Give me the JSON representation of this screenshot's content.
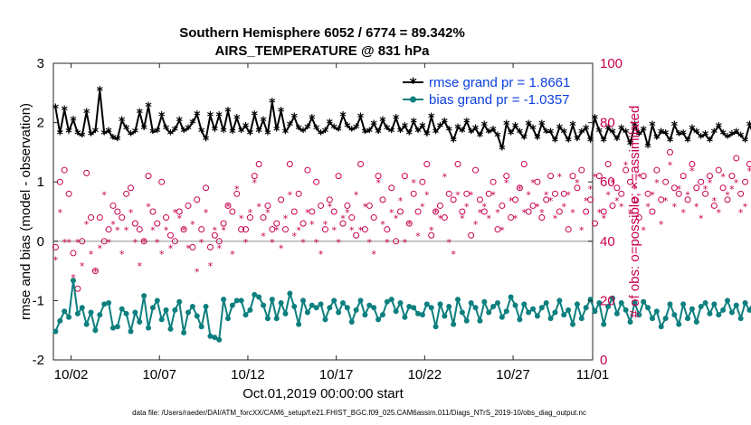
{
  "chart_data": {
    "type": "line",
    "title": "Southern Hemisphere 6052 / 6774 = 89.342%",
    "subtitle": "AIRS_TEMPERATURE @ 831 hPa",
    "xlabel": "Oct.01,2019 00:00:00 start",
    "ylabel": "rmse and bias (model - observation)",
    "ylabel_right": "# of obs: o=possible; ×=assimilated",
    "footnote": "data file: /Users/raeder/DAI/ATM_forcXX/CAM6_setup/f.e21.FHIST_BGC.f09_025.CAM6assim.011/Diags_NTrS_2019-10/obs_diag_output.nc",
    "xlim": [
      0.5,
      31.0
    ],
    "ylim": [
      -2,
      3
    ],
    "ylim_right": [
      0,
      100
    ],
    "x_ticks": [
      1.5,
      6.5,
      11.5,
      16.5,
      21.5,
      26.5,
      31.0
    ],
    "x_tick_labels": [
      "10/02",
      "10/07",
      "10/12",
      "10/17",
      "10/22",
      "10/27",
      "11/01"
    ],
    "y_ticks": [
      -2,
      -1,
      0,
      1,
      2,
      3
    ],
    "y_ticks_right": [
      0,
      20,
      40,
      60,
      80,
      100
    ],
    "grid": false,
    "legend_position": "top-right",
    "colors": {
      "rmse": "#000000",
      "bias": "#0e7f7f",
      "obs": "#c8004f",
      "zero_line": "#b3b3b3",
      "legend_text": "#0b3fe0"
    },
    "series": [
      {
        "name": "rmse grand pr = 1.8661",
        "axis": "left",
        "style": "line-asterisk",
        "values": [
          2.25,
          1.82,
          2.22,
          1.85,
          2.05,
          1.82,
          1.78,
          2.18,
          1.8,
          1.86,
          2.55,
          1.82,
          1.86,
          1.74,
          1.72,
          2.04,
          1.9,
          1.8,
          1.85,
          2.18,
          1.9,
          2.28,
          1.84,
          1.86,
          2.12,
          1.9,
          1.82,
          1.88,
          2.04,
          1.86,
          1.9,
          2.0,
          2.14,
          1.86,
          1.72,
          2.12,
          1.88,
          2.12,
          1.86,
          2.2,
          1.84,
          2.08,
          1.86,
          1.94,
          1.82,
          2.14,
          1.86,
          2.04,
          1.82,
          2.35,
          1.88,
          2.2,
          1.84,
          1.96,
          2.1,
          1.9,
          1.86,
          1.92,
          2.08,
          1.9,
          1.82,
          1.86,
          2.0,
          1.92,
          1.88,
          2.12,
          1.94,
          1.88,
          1.92,
          2.1,
          1.84,
          1.86,
          1.98,
          1.84,
          2.04,
          1.9,
          1.86,
          2.08,
          1.86,
          1.94,
          1.82,
          2.02,
          1.86,
          1.94,
          1.8,
          2.1,
          1.84,
          1.94,
          2.02,
          1.88,
          1.7,
          1.92,
          1.86,
          2.02,
          1.84,
          1.9,
          1.78,
          1.96,
          1.84,
          1.88,
          1.78,
          1.56,
          1.98,
          1.82,
          1.94,
          1.84,
          1.74,
          1.98,
          1.9,
          1.74,
          1.98,
          1.84,
          1.84,
          1.7,
          1.92,
          1.84,
          1.7,
          1.96,
          1.72,
          1.84,
          1.9,
          1.7,
          2.08,
          1.86,
          1.7,
          1.9,
          1.84,
          1.72,
          1.9,
          1.84,
          1.64,
          1.96,
          1.8,
          1.88,
          1.6,
          1.96,
          1.74,
          1.84,
          1.82,
          1.7,
          1.96,
          1.8,
          1.82,
          1.7,
          1.9,
          1.84,
          1.76,
          1.8,
          1.7,
          1.84,
          1.94,
          1.82,
          1.76,
          1.8,
          1.84,
          1.78,
          1.7,
          1.96,
          1.8,
          1.82,
          1.8,
          1.84,
          1.72,
          1.84,
          1.7,
          1.86,
          1.8,
          1.62,
          1.84,
          1.78,
          1.7,
          1.92,
          1.76,
          1.82,
          1.84,
          1.7,
          1.6,
          1.8,
          1.84,
          1.96,
          1.78,
          1.74,
          1.66,
          1.74,
          1.82,
          1.78,
          1.84,
          1.76,
          1.64,
          1.84,
          1.8,
          1.74,
          1.68,
          1.8,
          1.84,
          1.8,
          1.82,
          1.66,
          1.74,
          1.78,
          1.6,
          1.8,
          2.04,
          1.72,
          1.88,
          1.84,
          1.74,
          1.76,
          1.88,
          1.78,
          1.92,
          2.0,
          1.74,
          1.84,
          1.7,
          1.68,
          1.82,
          1.62,
          1.8,
          1.74,
          1.82,
          1.84,
          1.8,
          1.7,
          1.84,
          1.74,
          1.7,
          1.68,
          1.8,
          1.84,
          1.64,
          1.78,
          1.7,
          1.82,
          1.92,
          1.84,
          1.86,
          1.7,
          1.96,
          1.68,
          1.82,
          1.72,
          1.8,
          2.06,
          1.7,
          1.74,
          1.86,
          1.78,
          1.84,
          1.66,
          1.64,
          1.92,
          1.74,
          1.8,
          1.86,
          1.7,
          1.74,
          1.86,
          1.84,
          1.8,
          2.04,
          1.86,
          1.8,
          1.94,
          1.84,
          1.92,
          1.86,
          1.8,
          1.82,
          1.64,
          1.84,
          1.74,
          1.86,
          1.74,
          1.8,
          2.22,
          1.84,
          1.82,
          1.88,
          2.08,
          1.82,
          1.84,
          1.66,
          1.88,
          1.76,
          1.8,
          1.74,
          1.6,
          1.96,
          1.74,
          1.58,
          1.56,
          1.56
        ]
      },
      {
        "name": "bias grand pr = -1.0357",
        "axis": "left",
        "style": "line-dot",
        "values": [
          -1.52,
          -1.34,
          -1.18,
          -1.28,
          -0.66,
          -1.22,
          -1.12,
          -1.4,
          -1.2,
          -1.5,
          -1.24,
          -1.06,
          -1.04,
          -1.46,
          -1.44,
          -1.14,
          -1.22,
          -1.52,
          -1.2,
          -1.36,
          -0.92,
          -1.46,
          -1.12,
          -1.0,
          -1.32,
          -1.16,
          -1.48,
          -1.16,
          -1.02,
          -1.54,
          -1.2,
          -1.1,
          -1.26,
          -1.44,
          -1.1,
          -1.6,
          -1.62,
          -1.66,
          -0.98,
          -1.3,
          -1.08,
          -1.0,
          -1.0,
          -1.24,
          -1.16,
          -0.9,
          -0.94,
          -1.08,
          -1.3,
          -0.98,
          -1.3,
          -1.04,
          -1.22,
          -0.88,
          -1.1,
          -1.4,
          -1.0,
          -1.2,
          -1.08,
          -1.12,
          -1.06,
          -1.32,
          -1.12,
          -1.0,
          -1.2,
          -1.04,
          -1.12,
          -1.36,
          -1.16,
          -1.0,
          -1.24,
          -1.08,
          -1.12,
          -1.32,
          -1.24,
          -1.02,
          -0.98,
          -1.18,
          -1.04,
          -1.28,
          -1.1,
          -1.12,
          -1.22,
          -1.24,
          -1.06,
          -1.12,
          -1.44,
          -1.06,
          -1.26,
          -1.1,
          -1.4,
          -0.98,
          -1.2,
          -1.34,
          -1.04,
          -1.12,
          -1.34,
          -1.02,
          -1.2,
          -1.1,
          -1.04,
          -1.28,
          -1.18,
          -0.94,
          -1.08,
          -1.32,
          -1.06,
          -1.2,
          -1.14,
          -1.26,
          -1.12,
          -1.04,
          -1.3,
          -1.2,
          -1.0,
          -1.24,
          -1.16,
          -1.4,
          -1.06,
          -1.3,
          -1.12,
          -0.98,
          -1.18,
          -1.04,
          -1.4,
          -1.1,
          -0.96,
          -1.22,
          -1.04,
          -1.16,
          -1.36,
          -1.04,
          -1.24,
          -1.02,
          -1.12,
          -1.3,
          -1.18,
          -1.44,
          -1.3,
          -1.06,
          -1.24,
          -1.4,
          -1.06,
          -1.3,
          -1.14,
          -1.36,
          -1.1,
          -1.04,
          -1.22,
          -1.06,
          -1.24,
          -1.16,
          -1.0,
          -1.2,
          -1.08,
          -1.3,
          -1.04,
          -1.16,
          -1.0,
          -1.2,
          -1.1,
          -1.2,
          -0.94,
          -1.3,
          -1.1,
          -1.2,
          -0.96,
          -1.28,
          -1.1,
          -1.16,
          -0.74,
          -1.08,
          -1.16,
          -1.3,
          -1.06,
          -1.2,
          -0.88,
          -1.1,
          -1.0,
          -1.16,
          -1.3,
          -1.1,
          -1.04,
          -0.72,
          -1.2,
          -0.9,
          -1.1,
          -1.0,
          -1.26,
          -0.9,
          -1.1,
          -1.06,
          -0.94,
          -1.22,
          -0.96,
          -1.0,
          -1.18,
          -0.9,
          -1.12,
          -1.16,
          -0.88,
          -1.02,
          -0.9,
          -1.0,
          -1.02,
          -1.2,
          -0.86,
          -1.0,
          -1.04,
          -0.96,
          -1.0,
          -0.78,
          -1.1,
          -0.92,
          -1.04,
          -0.8,
          -0.94,
          -1.0,
          -0.84,
          -0.94,
          -1.06,
          -0.82,
          -0.88,
          -0.98,
          -1.1,
          -0.84,
          -0.92,
          -0.78,
          -0.9,
          -1.0,
          -0.88,
          -0.7,
          -0.84,
          -1.0,
          -0.92,
          -0.76,
          -0.88,
          -0.7,
          -0.92,
          -0.86,
          -1.04,
          -0.94,
          -0.78,
          -0.9,
          -0.76,
          -0.96,
          -0.84,
          -0.82,
          -0.96,
          -0.74,
          -0.9,
          -0.8,
          -0.84,
          -1.0,
          -0.7,
          -0.42,
          -0.62,
          -0.5,
          -0.68,
          -0.96,
          -0.56,
          -0.7,
          -0.84,
          -0.66,
          -0.86,
          -0.7,
          -0.62,
          -0.88,
          -0.7,
          -0.66,
          -0.74,
          -0.8,
          -0.64,
          -0.92,
          -0.74,
          -0.7,
          -0.8,
          -0.58,
          -0.64,
          -0.84,
          -0.5,
          -0.7,
          -0.48,
          -0.6,
          -0.66,
          -0.84,
          -0.48,
          -0.56,
          -0.54,
          -0.7,
          -0.94,
          -0.92
        ]
      },
      {
        "name": "# of obs possible (o)",
        "axis": "right",
        "style": "circle",
        "values": [
          38,
          60,
          64,
          56,
          36,
          24,
          40,
          63,
          48,
          30,
          48,
          40,
          44,
          52,
          50,
          48,
          56,
          58,
          46,
          44,
          40,
          62,
          50,
          46,
          60,
          48,
          42,
          40,
          50,
          44,
          52,
          38,
          54,
          44,
          58,
          38,
          42,
          40,
          46,
          52,
          50,
          56,
          44,
          44,
          48,
          62,
          66,
          48,
          52,
          44,
          46,
          54,
          44,
          66,
          50,
          56,
          46,
          64,
          50,
          60,
          52,
          44,
          54,
          50,
          62,
          46,
          52,
          48,
          42,
          66,
          44,
          52,
          48,
          62,
          54,
          44,
          58,
          40,
          50,
          62,
          46,
          56,
          50,
          60,
          66,
          42,
          50,
          52,
          48,
          56,
          54,
          66,
          50,
          56,
          42,
          64,
          54,
          50,
          56,
          60,
          44,
          52,
          62,
          48,
          54,
          58,
          66,
          50,
          52,
          60,
          48,
          54,
          62,
          56,
          50,
          56,
          44,
          62,
          58,
          64,
          50,
          54,
          46,
          62,
          50,
          66,
          52,
          58,
          56,
          64,
          60,
          54,
          48,
          62,
          56,
          50,
          64,
          54,
          60,
          70,
          58,
          56,
          62,
          54,
          66,
          58,
          60,
          56,
          62,
          52,
          64,
          58,
          54,
          62,
          68,
          56,
          60,
          66,
          62,
          56,
          64,
          60,
          54,
          62,
          68,
          56,
          58,
          62,
          60,
          56,
          62,
          58,
          52,
          66,
          62,
          58,
          60,
          54,
          70,
          64,
          58,
          62,
          56,
          60,
          60,
          62,
          56,
          58,
          58,
          46,
          48,
          58,
          56,
          60,
          48,
          52,
          56,
          50,
          58,
          62,
          58,
          52,
          56,
          60,
          58,
          50,
          64,
          62,
          52,
          48,
          60,
          56,
          58,
          52,
          60,
          50,
          56,
          62,
          58,
          58,
          54,
          60,
          56,
          62,
          48,
          56,
          62,
          58,
          52,
          60,
          56,
          64,
          58,
          48,
          56,
          62,
          52,
          60,
          56,
          62,
          58,
          54,
          60,
          62,
          54,
          58,
          56,
          62,
          58,
          56,
          60,
          52,
          64,
          58,
          56,
          62,
          60,
          56,
          62,
          56,
          68,
          58,
          60,
          56,
          62,
          58,
          60,
          54,
          62,
          58,
          50,
          62,
          56,
          60,
          54,
          62,
          58,
          56,
          62,
          58,
          56,
          60,
          54,
          62,
          58,
          58,
          56,
          50,
          58,
          54,
          56,
          52,
          60,
          56,
          44,
          56,
          58
        ]
      },
      {
        "name": "# of obs assimilated (×)",
        "axis": "right",
        "style": "asterisk",
        "values": [
          34,
          50,
          40,
          40,
          28,
          40,
          32,
          46,
          36,
          30,
          38,
          56,
          40,
          46,
          44,
          36,
          44,
          50,
          40,
          32,
          40,
          52,
          44,
          40,
          36,
          44,
          38,
          50,
          48,
          44,
          38,
          46,
          30,
          40,
          50,
          32,
          44,
          38,
          44,
          52,
          36,
          58,
          48,
          40,
          50,
          60,
          52,
          42,
          50,
          40,
          44,
          38,
          48,
          56,
          42,
          44,
          40,
          50,
          46,
          40,
          36,
          46,
          52,
          44,
          40,
          48,
          50,
          44,
          56,
          44,
          52,
          40,
          36,
          60,
          46,
          40,
          50,
          48,
          54,
          40,
          46,
          60,
          42,
          52,
          56,
          44,
          50,
          48,
          62,
          40,
          36,
          56,
          48,
          52,
          56,
          46,
          50,
          52,
          48,
          56,
          50,
          44,
          60,
          54,
          48,
          58,
          50,
          56,
          60,
          52,
          50,
          56,
          54,
          48,
          62,
          52,
          56,
          50,
          60,
          44,
          54,
          58,
          62,
          50,
          48,
          56,
          60,
          54,
          52,
          66,
          50,
          58,
          62,
          44,
          52,
          56,
          60,
          46,
          54,
          66,
          52,
          58,
          50,
          56,
          64,
          52,
          48,
          58,
          60,
          54,
          50,
          62,
          56,
          58,
          60,
          50,
          52,
          64,
          58,
          56,
          54,
          60,
          62,
          56,
          58,
          64,
          52,
          56,
          62,
          58,
          60,
          54,
          64,
          58,
          62,
          56,
          60,
          54,
          66,
          58,
          60,
          62,
          58,
          56,
          64,
          54,
          60,
          62,
          58,
          56,
          64,
          52,
          58,
          62,
          56,
          60,
          64,
          58,
          54,
          62,
          58,
          60,
          56,
          64,
          58,
          62,
          60,
          56,
          54,
          62,
          58,
          60,
          52,
          58,
          56,
          62,
          54,
          60,
          58,
          56,
          62,
          52,
          58,
          64,
          56,
          60,
          62,
          58,
          56,
          60,
          64,
          56,
          50,
          62,
          58,
          60,
          56,
          62,
          54,
          60,
          58,
          64,
          56,
          62,
          52,
          60,
          58,
          56,
          62,
          58,
          60,
          56,
          64,
          58,
          62,
          56,
          44,
          60,
          58,
          62,
          56,
          60,
          58,
          54,
          62,
          60,
          58,
          56,
          62,
          58,
          60,
          56,
          62,
          58,
          56,
          60,
          62,
          58,
          56,
          60,
          58,
          62,
          56,
          58,
          60,
          54,
          62,
          58,
          44,
          40,
          40,
          42,
          56,
          58,
          46,
          54,
          54,
          56
        ]
      }
    ]
  }
}
